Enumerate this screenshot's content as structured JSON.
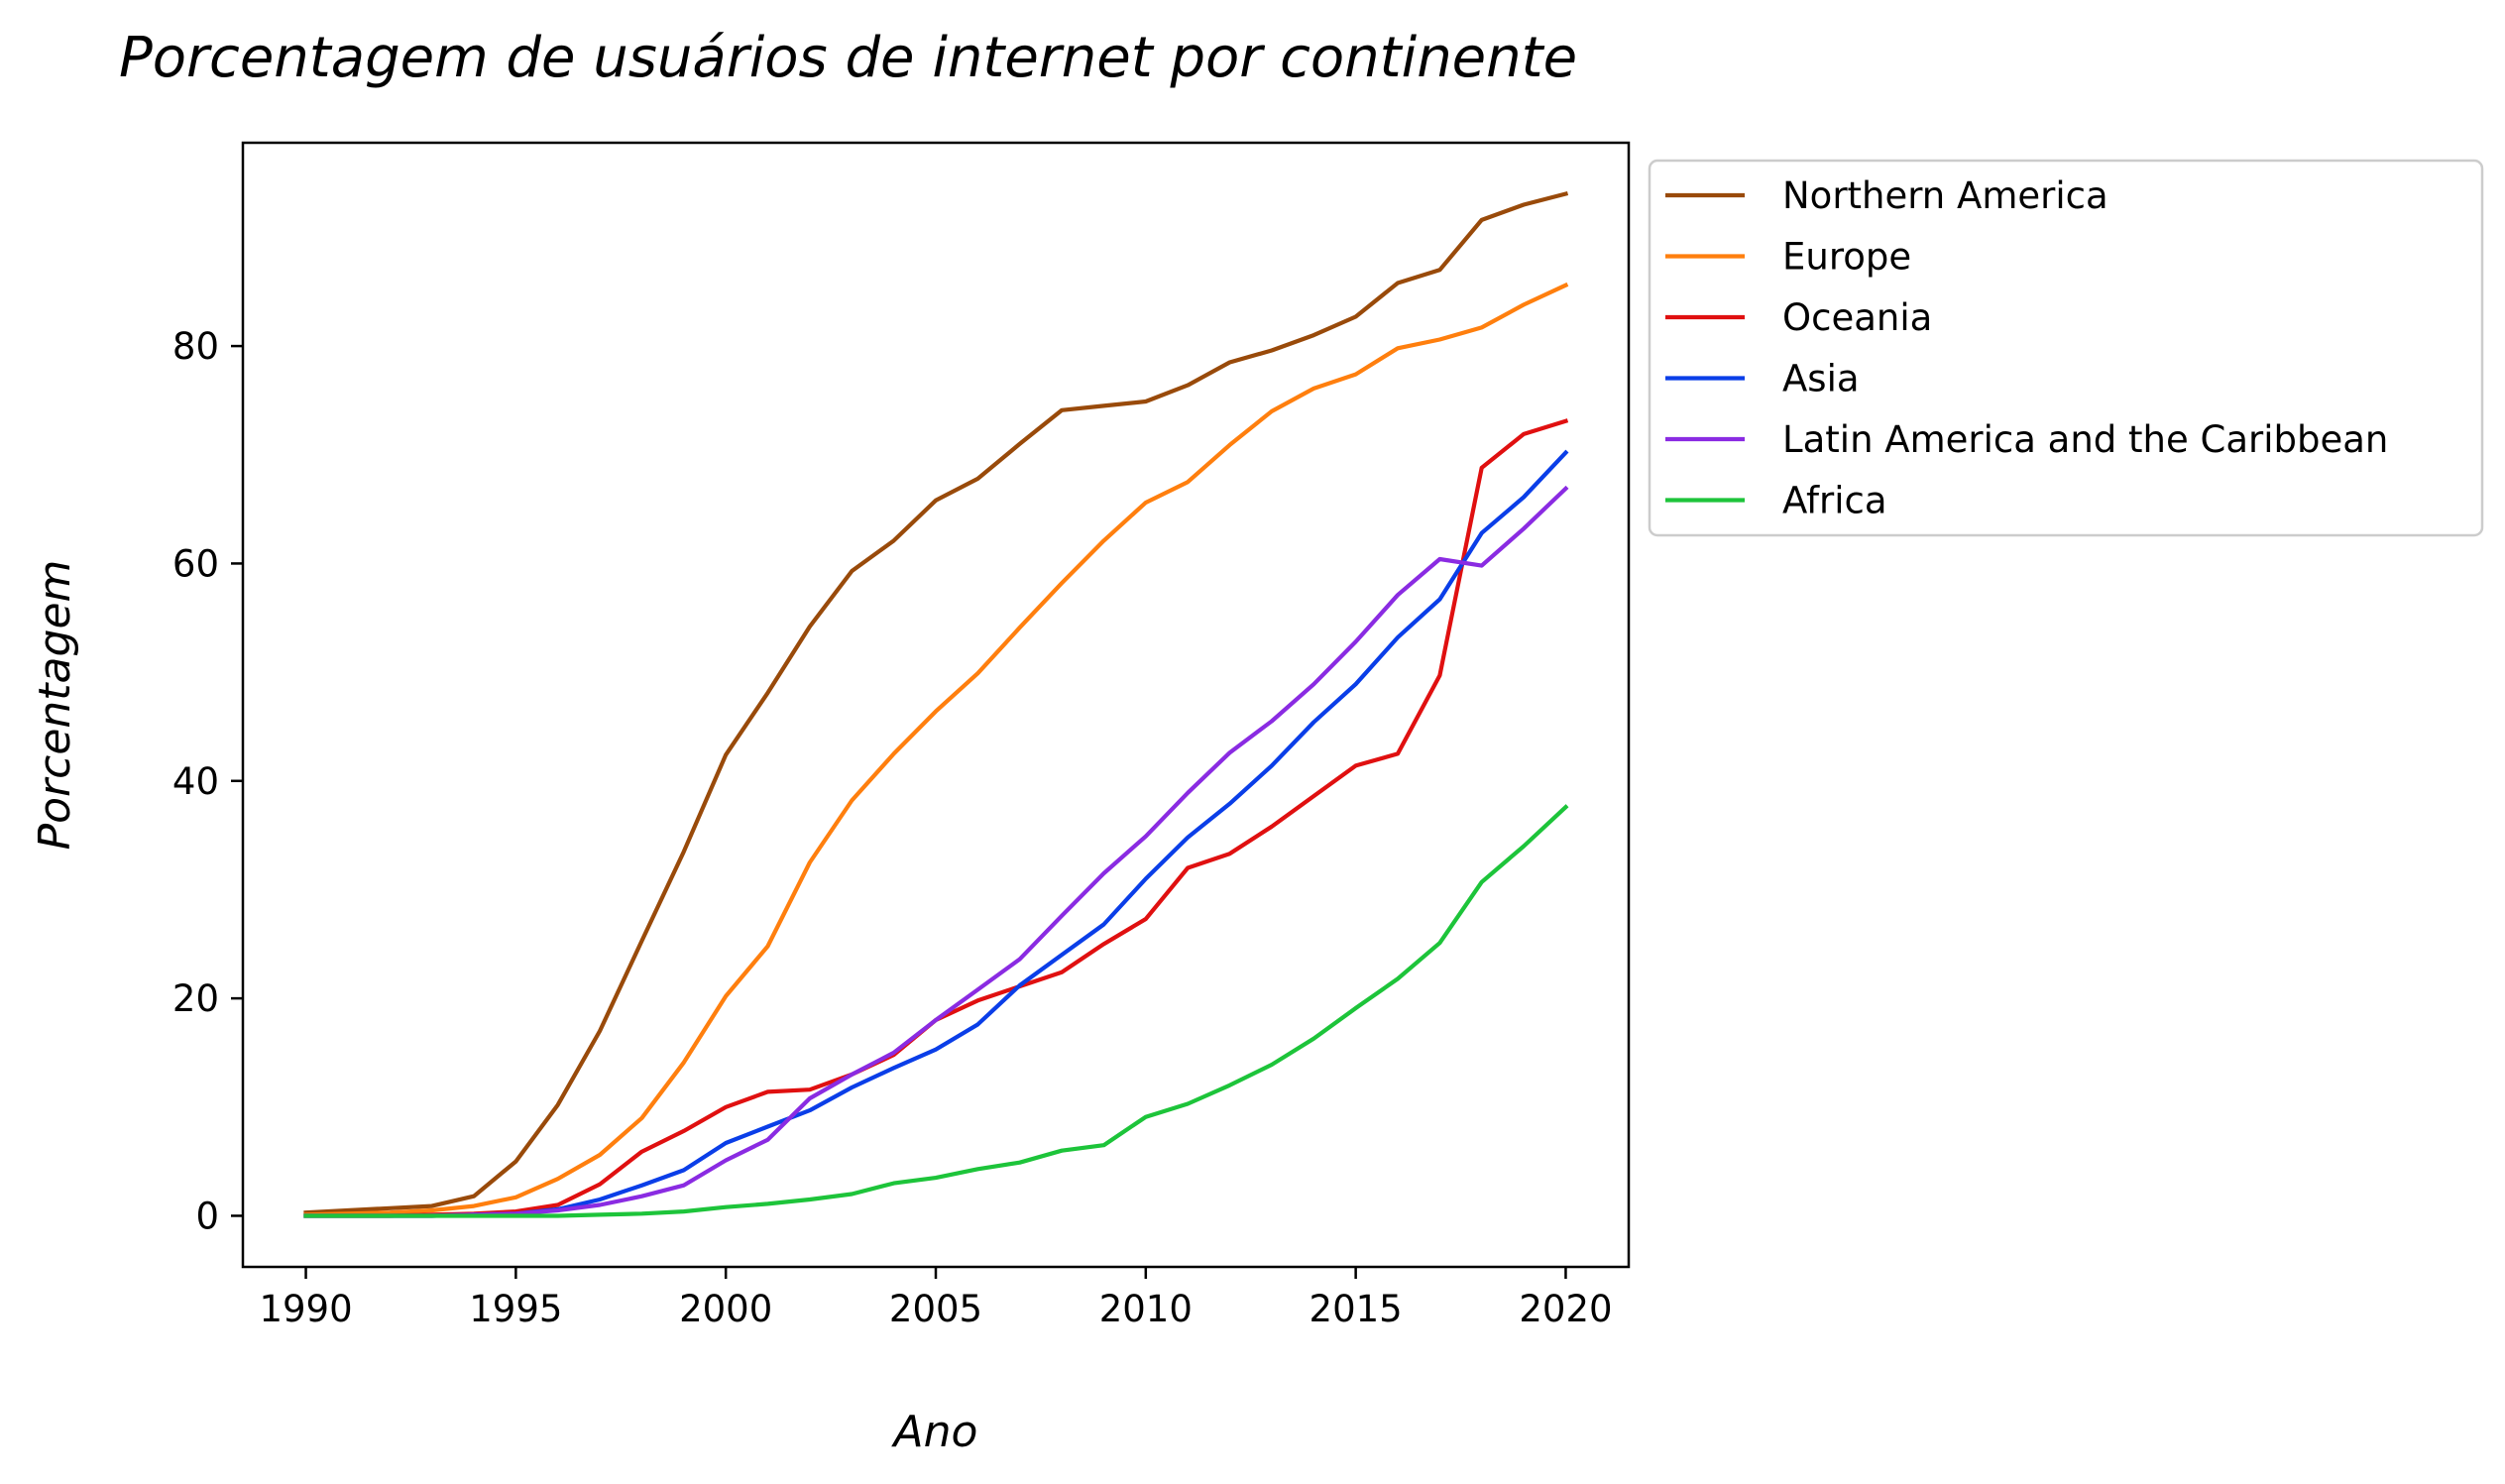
{
  "chart_data": {
    "type": "line",
    "title": "Porcentagem de usuários de internet por continente",
    "xlabel": "Ano",
    "ylabel": "Porcentagem",
    "xlim": [
      1988.5,
      2021.5
    ],
    "ylim": [
      -4.7,
      98.7
    ],
    "xticks": [
      1990,
      1995,
      2000,
      2005,
      2010,
      2015,
      2020
    ],
    "yticks": [
      0,
      20,
      40,
      60,
      80
    ],
    "grid": false,
    "legend_position": "outside-top-right",
    "x": [
      1990,
      1991,
      1992,
      1993,
      1994,
      1995,
      1996,
      1997,
      1998,
      1999,
      2000,
      2001,
      2002,
      2003,
      2004,
      2005,
      2006,
      2007,
      2008,
      2009,
      2010,
      2011,
      2012,
      2013,
      2014,
      2015,
      2016,
      2017,
      2018,
      2019,
      2020
    ],
    "series": [
      {
        "name": "Northern America",
        "color": "#994A0A",
        "values": [
          0.3,
          0.5,
          0.7,
          0.9,
          1.8,
          5.0,
          10.2,
          17.0,
          25.3,
          33.5,
          42.4,
          48.1,
          54.2,
          59.3,
          62.1,
          65.8,
          67.8,
          71.0,
          74.1,
          74.5,
          74.9,
          76.4,
          78.5,
          79.6,
          81.0,
          82.7,
          85.8,
          87.0,
          91.6,
          93.0,
          94.0
        ]
      },
      {
        "name": "Europe",
        "color": "#FF7F0E",
        "values": [
          0.1,
          0.2,
          0.3,
          0.5,
          0.9,
          1.7,
          3.4,
          5.6,
          9.0,
          14.1,
          20.2,
          24.8,
          32.5,
          38.2,
          42.5,
          46.4,
          49.9,
          54.1,
          58.2,
          62.1,
          65.6,
          67.5,
          70.9,
          74.0,
          76.1,
          77.4,
          79.8,
          80.6,
          81.7,
          83.8,
          85.6
        ]
      },
      {
        "name": "Oceania",
        "color": "#E01010",
        "values": [
          0.0,
          0.0,
          0.0,
          0.1,
          0.2,
          0.4,
          1.0,
          2.9,
          5.9,
          7.8,
          10.0,
          11.4,
          11.6,
          13.0,
          14.8,
          18.0,
          19.8,
          21.1,
          22.4,
          25.0,
          27.3,
          32.0,
          33.3,
          35.8,
          38.6,
          41.4,
          42.5,
          49.7,
          68.8,
          71.9,
          73.1
        ]
      },
      {
        "name": "Asia",
        "color": "#0A3EE8",
        "values": [
          0.0,
          0.0,
          0.0,
          0.0,
          0.1,
          0.2,
          0.6,
          1.5,
          2.8,
          4.2,
          6.7,
          8.2,
          9.7,
          11.8,
          13.6,
          15.3,
          17.6,
          21.2,
          24.0,
          26.8,
          31.0,
          34.8,
          37.9,
          41.4,
          45.4,
          48.9,
          53.2,
          56.7,
          62.8,
          66.1,
          70.2
        ]
      },
      {
        "name": "Latin America and the Caribbean",
        "color": "#8A2BE2",
        "values": [
          0.0,
          0.0,
          0.0,
          0.0,
          0.1,
          0.2,
          0.5,
          1.0,
          1.8,
          2.8,
          5.1,
          7.0,
          10.8,
          13.0,
          15.0,
          18.0,
          20.8,
          23.6,
          27.6,
          31.5,
          34.9,
          38.9,
          42.6,
          45.5,
          48.9,
          52.8,
          57.1,
          60.4,
          59.8,
          63.2,
          66.9
        ]
      },
      {
        "name": "Africa",
        "color": "#1DC43A",
        "values": [
          0.0,
          0.0,
          0.0,
          0.0,
          0.0,
          0.0,
          0.0,
          0.1,
          0.2,
          0.4,
          0.8,
          1.1,
          1.5,
          2.0,
          3.0,
          3.5,
          4.3,
          4.9,
          6.0,
          6.5,
          9.1,
          10.3,
          12.0,
          13.9,
          16.3,
          19.1,
          21.8,
          25.1,
          30.7,
          34.0,
          37.6
        ]
      }
    ]
  }
}
